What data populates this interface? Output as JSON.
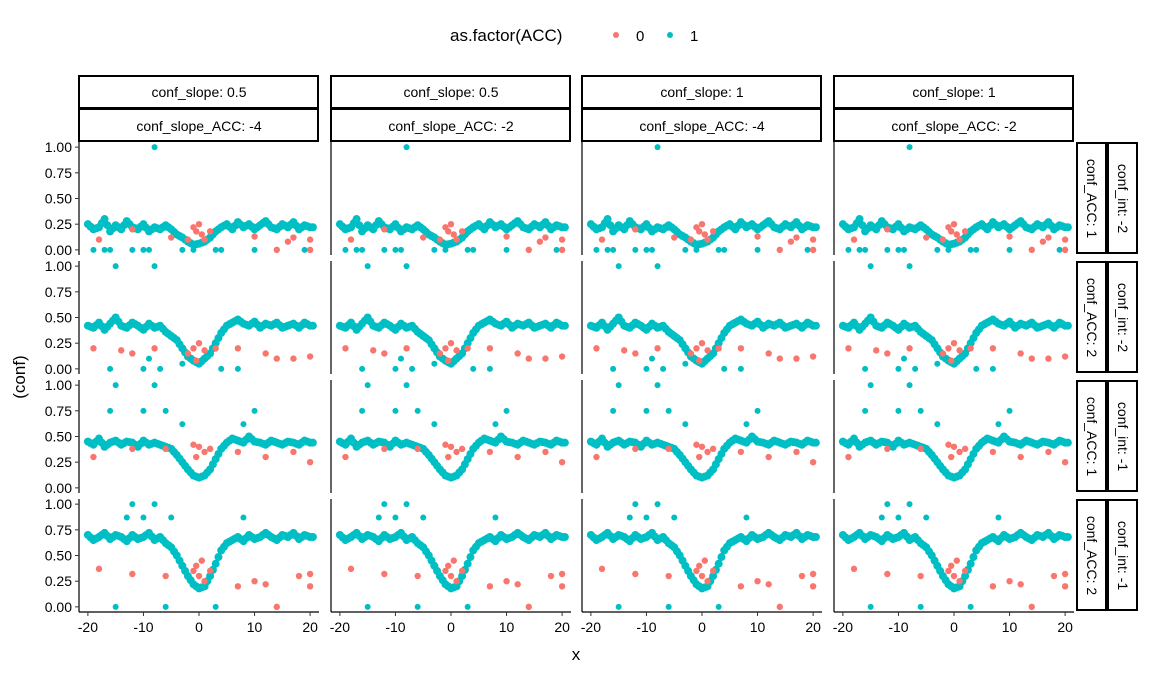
{
  "chart_data": {
    "type": "scatter",
    "title": "",
    "xlabel": "x",
    "ylabel": "(conf)",
    "xlim": [
      -21.6,
      21.6
    ],
    "ylim": [
      -0.05,
      1.05
    ],
    "xticks": [
      -20,
      -10,
      0,
      10,
      20
    ],
    "yticks": [
      "0.00",
      "0.25",
      "0.50",
      "0.75",
      "1.00"
    ],
    "grid": false,
    "legend": {
      "title": "as.factor(ACC)",
      "placement": "top",
      "entries": [
        {
          "label": "0",
          "color": "#F8766D"
        },
        {
          "label": "1",
          "color": "#00BFC4"
        }
      ]
    },
    "facet_cols": [
      {
        "strip1": "conf_slope: 0.5",
        "strip2": "conf_slope_ACC: -4"
      },
      {
        "strip1": "conf_slope: 0.5",
        "strip2": "conf_slope_ACC: -2"
      },
      {
        "strip1": "conf_slope: 1",
        "strip2": "conf_slope_ACC: -4"
      },
      {
        "strip1": "conf_slope: 1",
        "strip2": "conf_slope_ACC: -2"
      }
    ],
    "facet_rows": [
      {
        "strip1": "conf_ACC: 1",
        "strip2": "conf_int: -2",
        "acc1_curve_x_from": -20,
        "acc1_curve": [
          0.25,
          0.2,
          0.22,
          0.3,
          0.18,
          0.24,
          0.2,
          0.28,
          0.22,
          0.2,
          0.25,
          0.18,
          0.22,
          0.2,
          0.24,
          0.2,
          0.15,
          0.12,
          0.08,
          0.05,
          0.06,
          0.08,
          0.12,
          0.18,
          0.22,
          0.25,
          0.2,
          0.27,
          0.22,
          0.25,
          0.2,
          0.24,
          0.28,
          0.22,
          0.2,
          0.25,
          0.22,
          0.27,
          0.2,
          0.24,
          0.22
        ],
        "acc1_extra": [
          [
            -8,
            1.0
          ],
          [
            -19,
            0
          ],
          [
            -17,
            0
          ],
          [
            -16,
            0
          ],
          [
            -12,
            0
          ],
          [
            -10,
            0
          ],
          [
            -9,
            0
          ],
          [
            -3,
            0
          ],
          [
            -1,
            0
          ],
          [
            3,
            0
          ],
          [
            4,
            0
          ],
          [
            10,
            0
          ],
          [
            19,
            0
          ]
        ],
        "acc0": [
          [
            -1,
            0.22
          ],
          [
            0,
            0.25
          ],
          [
            -0.5,
            0.18
          ],
          [
            0.5,
            0.15
          ],
          [
            1,
            0.1
          ],
          [
            2,
            0.18
          ],
          [
            -2,
            0.1
          ],
          [
            -18,
            0.1
          ],
          [
            -12,
            0.2
          ],
          [
            -5,
            0.12
          ],
          [
            10,
            0.13
          ],
          [
            16,
            0.08
          ],
          [
            17,
            0.12
          ],
          [
            20,
            0.1
          ],
          [
            20,
            0
          ],
          [
            14,
            0
          ]
        ]
      },
      {
        "strip1": "conf_ACC: 2",
        "strip2": "conf_int: -2",
        "acc1_curve_x_from": -20,
        "acc1_curve": [
          0.42,
          0.4,
          0.45,
          0.38,
          0.44,
          0.5,
          0.42,
          0.4,
          0.45,
          0.42,
          0.38,
          0.44,
          0.4,
          0.42,
          0.36,
          0.32,
          0.28,
          0.2,
          0.12,
          0.08,
          0.05,
          0.1,
          0.15,
          0.25,
          0.35,
          0.42,
          0.45,
          0.48,
          0.44,
          0.42,
          0.46,
          0.4,
          0.44,
          0.42,
          0.45,
          0.4,
          0.42,
          0.44,
          0.4,
          0.45,
          0.42
        ],
        "acc1_extra": [
          [
            -15,
            1.0
          ],
          [
            -8,
            1.0
          ],
          [
            -16,
            0.0
          ],
          [
            -10,
            0.0
          ],
          [
            -9,
            0.1
          ],
          [
            -7,
            0.0
          ],
          [
            -3,
            0.05
          ],
          [
            4,
            0.0
          ],
          [
            7,
            0.0
          ]
        ],
        "acc0": [
          [
            -19,
            0.2
          ],
          [
            -14,
            0.18
          ],
          [
            -12,
            0.15
          ],
          [
            -8,
            0.2
          ],
          [
            -2,
            0.15
          ],
          [
            -1,
            0.2
          ],
          [
            0,
            0.25
          ],
          [
            1,
            0.18
          ],
          [
            -0.5,
            0.08
          ],
          [
            3,
            0.2
          ],
          [
            7,
            0.2
          ],
          [
            12,
            0.15
          ],
          [
            14,
            0.1
          ],
          [
            17,
            0.1
          ],
          [
            20,
            0.12
          ]
        ]
      },
      {
        "strip1": "conf_ACC: 1",
        "strip2": "conf_int: -1",
        "acc1_curve_x_from": -20,
        "acc1_curve": [
          0.45,
          0.42,
          0.48,
          0.4,
          0.44,
          0.46,
          0.42,
          0.45,
          0.44,
          0.4,
          0.46,
          0.42,
          0.44,
          0.42,
          0.4,
          0.38,
          0.32,
          0.25,
          0.18,
          0.12,
          0.1,
          0.12,
          0.18,
          0.28,
          0.38,
          0.44,
          0.48,
          0.46,
          0.44,
          0.5,
          0.45,
          0.44,
          0.42,
          0.46,
          0.44,
          0.42,
          0.45,
          0.44,
          0.42,
          0.46,
          0.44
        ],
        "acc1_extra": [
          [
            -15,
            1.0
          ],
          [
            -8,
            1.0
          ],
          [
            -16,
            0.75
          ],
          [
            -6,
            0.75
          ],
          [
            -10,
            0.75
          ],
          [
            -3,
            0.62
          ],
          [
            8,
            0.62
          ],
          [
            10,
            0.75
          ]
        ],
        "acc0": [
          [
            -1,
            0.42
          ],
          [
            0,
            0.4
          ],
          [
            1,
            0.35
          ],
          [
            -0.5,
            0.3
          ],
          [
            2,
            0.38
          ],
          [
            -12,
            0.38
          ],
          [
            -6,
            0.38
          ],
          [
            7,
            0.35
          ],
          [
            12,
            0.3
          ],
          [
            17,
            0.35
          ],
          [
            20,
            0.25
          ],
          [
            -19,
            0.3
          ]
        ]
      },
      {
        "strip1": "conf_ACC: 2",
        "strip2": "conf_int: -1",
        "acc1_curve_x_from": -20,
        "acc1_curve": [
          0.7,
          0.65,
          0.68,
          0.72,
          0.66,
          0.7,
          0.68,
          0.64,
          0.7,
          0.66,
          0.68,
          0.72,
          0.65,
          0.68,
          0.62,
          0.58,
          0.5,
          0.4,
          0.3,
          0.22,
          0.18,
          0.2,
          0.3,
          0.42,
          0.55,
          0.62,
          0.65,
          0.68,
          0.64,
          0.7,
          0.66,
          0.68,
          0.72,
          0.68,
          0.65,
          0.7,
          0.68,
          0.72,
          0.66,
          0.7,
          0.68
        ],
        "acc1_extra": [
          [
            -15,
            0.0
          ],
          [
            -13,
            0.87
          ],
          [
            -12,
            1.0
          ],
          [
            -10,
            0.87
          ],
          [
            -8,
            1.0
          ],
          [
            -6,
            0.0
          ],
          [
            -5,
            0.87
          ],
          [
            3,
            0.0
          ],
          [
            8,
            0.87
          ]
        ],
        "acc0": [
          [
            -18,
            0.37
          ],
          [
            -12,
            0.32
          ],
          [
            -6,
            0.3
          ],
          [
            -1,
            0.35
          ],
          [
            0,
            0.3
          ],
          [
            1,
            0.25
          ],
          [
            -0.5,
            0.4
          ],
          [
            0.5,
            0.45
          ],
          [
            2,
            0.35
          ],
          [
            7,
            0.2
          ],
          [
            10,
            0.25
          ],
          [
            12,
            0.22
          ],
          [
            14,
            0.0
          ],
          [
            18,
            0.3
          ],
          [
            20,
            0.2
          ],
          [
            20,
            0.32
          ]
        ]
      }
    ]
  }
}
